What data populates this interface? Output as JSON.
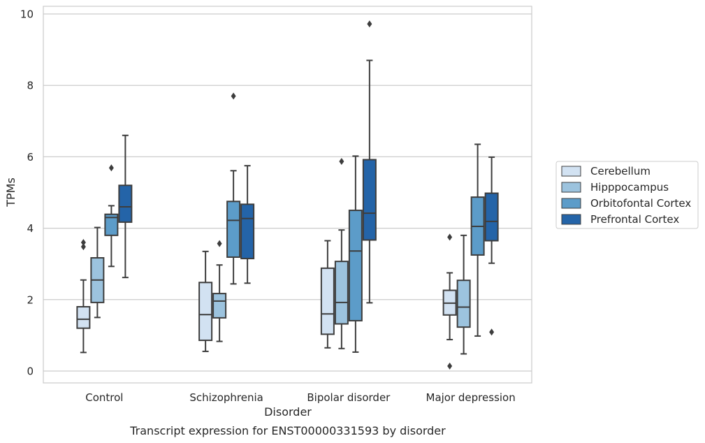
{
  "chart_data": {
    "type": "box",
    "caption": "Transcript expression for ENST00000331593 by disorder",
    "xlabel": "Disorder",
    "ylabel": "TPMs",
    "ylim": [
      -0.3,
      10.2
    ],
    "yticks": [
      0,
      2,
      4,
      6,
      8,
      10
    ],
    "grid": "horizontal",
    "legend_position": "right",
    "categories": [
      "Control",
      "Schizophrenia",
      "Bipolar disorder",
      "Major depression"
    ],
    "series": [
      {
        "name": "Cerebellum",
        "color": "#d2e2f2",
        "boxes": [
          {
            "whislo": 0.52,
            "q1": 1.2,
            "med": 1.45,
            "q3": 1.8,
            "whishi": 2.55,
            "fliers": [
              3.48,
              3.6
            ]
          },
          {
            "whislo": 0.55,
            "q1": 0.86,
            "med": 1.58,
            "q3": 2.48,
            "whishi": 3.35,
            "fliers": []
          },
          {
            "whislo": 0.65,
            "q1": 1.03,
            "med": 1.6,
            "q3": 2.88,
            "whishi": 3.65,
            "fliers": []
          },
          {
            "whislo": 0.88,
            "q1": 1.57,
            "med": 1.9,
            "q3": 2.26,
            "whishi": 2.75,
            "fliers": [
              3.75,
              0.14
            ]
          }
        ]
      },
      {
        "name": "Hipppocampus",
        "color": "#9cc3de",
        "boxes": [
          {
            "whislo": 1.5,
            "q1": 1.92,
            "med": 2.55,
            "q3": 3.17,
            "whishi": 4.02,
            "fliers": []
          },
          {
            "whislo": 0.83,
            "q1": 1.49,
            "med": 1.96,
            "q3": 2.17,
            "whishi": 2.97,
            "fliers": [
              3.57
            ]
          },
          {
            "whislo": 0.63,
            "q1": 1.32,
            "med": 1.92,
            "q3": 3.07,
            "whishi": 3.95,
            "fliers": [
              5.87
            ]
          },
          {
            "whislo": 0.48,
            "q1": 1.23,
            "med": 1.79,
            "q3": 2.54,
            "whishi": 3.8,
            "fliers": []
          }
        ]
      },
      {
        "name": "Orbitofontal Cortex",
        "color": "#5c9cc9",
        "boxes": [
          {
            "whislo": 2.93,
            "q1": 3.8,
            "med": 4.3,
            "q3": 4.39,
            "whishi": 4.63,
            "fliers": [
              5.69
            ]
          },
          {
            "whislo": 2.44,
            "q1": 3.19,
            "med": 4.22,
            "q3": 4.75,
            "whishi": 5.61,
            "fliers": [
              7.7
            ]
          },
          {
            "whislo": 0.53,
            "q1": 1.41,
            "med": 3.36,
            "q3": 4.5,
            "whishi": 6.02,
            "fliers": []
          },
          {
            "whislo": 0.98,
            "q1": 3.25,
            "med": 4.05,
            "q3": 4.87,
            "whishi": 6.35,
            "fliers": []
          }
        ]
      },
      {
        "name": "Prefrontal Cortex",
        "color": "#2464a8",
        "boxes": [
          {
            "whislo": 2.62,
            "q1": 4.17,
            "med": 4.6,
            "q3": 5.2,
            "whishi": 6.6,
            "fliers": []
          },
          {
            "whislo": 2.46,
            "q1": 3.15,
            "med": 4.27,
            "q3": 4.67,
            "whishi": 5.75,
            "fliers": []
          },
          {
            "whislo": 1.91,
            "q1": 3.67,
            "med": 4.42,
            "q3": 5.92,
            "whishi": 8.7,
            "fliers": [
              9.72
            ]
          },
          {
            "whislo": 3.02,
            "q1": 3.65,
            "med": 4.19,
            "q3": 4.98,
            "whishi": 5.99,
            "fliers": [
              1.09
            ]
          }
        ]
      }
    ]
  }
}
